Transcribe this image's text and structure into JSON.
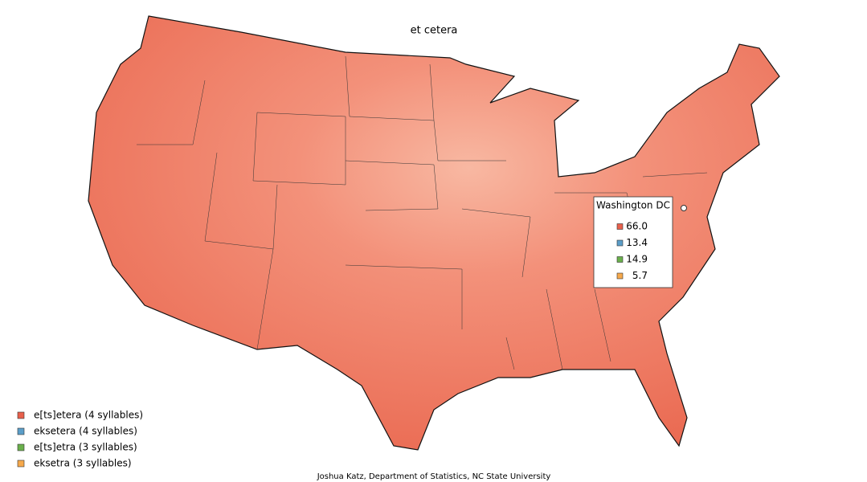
{
  "title": "et cetera",
  "legend": [
    {
      "label": "e[ts]etera (4 syllables)",
      "color": "#e8604c"
    },
    {
      "label": "eksetera (4 syllables)",
      "color": "#5b9ec9"
    },
    {
      "label": "e[ts]etra (3 syllables)",
      "color": "#6ab04c"
    },
    {
      "label": "eksetra (3 syllables)",
      "color": "#f6a94c"
    }
  ],
  "popup": {
    "location": "Washington DC",
    "values": [
      "66.0",
      "13.4",
      "14.9",
      "5.7"
    ]
  },
  "credit": "Joshua Katz, Department of Statistics, NC State University"
}
